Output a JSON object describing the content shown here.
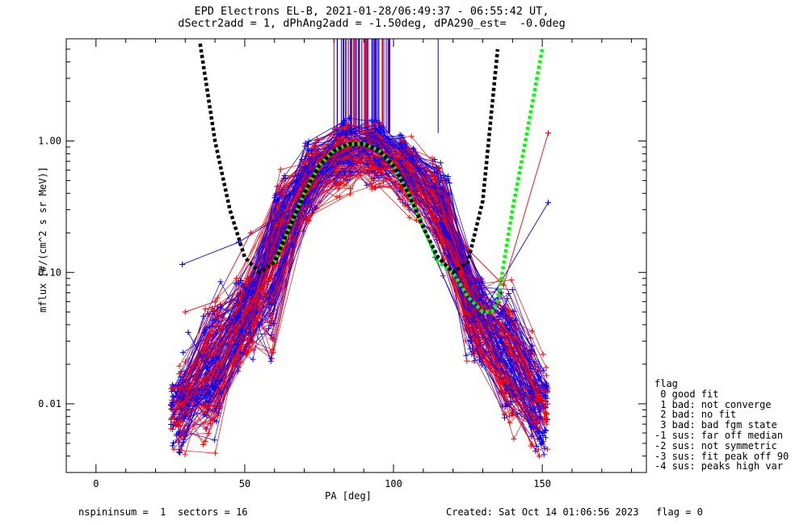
{
  "title": {
    "line1": "EPD Electrons EL-B, 2021-01-28/06:49:37 - 06:55:42 UT,",
    "line2": "dSectr2add = 1, dPhAng2add = -1.50deg, dPA290_est=  -0.0deg"
  },
  "footer": {
    "left": "nspininsum =  1  sectors = 16",
    "right": "Created: Sat Oct 14 01:06:56 2023   flag = 0"
  },
  "legend": {
    "title": "flag",
    "items": [
      " 0 good fit",
      " 1 bad: not converge",
      " 2 bad: no fit",
      " 3 bad: bad fgm state",
      "-1 sus: far off median",
      "-2 sus: not symmetric",
      "-3 sus: fit peak off 90",
      "-4 sus: peaks high var"
    ]
  },
  "colors": {
    "series_red": "#ff0000",
    "series_blue": "#0000ff",
    "fit_green": "#00ff00",
    "fit_black": "#000000"
  },
  "chart_data": {
    "type": "line",
    "xlabel": "PA [deg]",
    "ylabel": "mflux [#/(cm^2 s sr MeV)]",
    "xlim": [
      -10,
      185
    ],
    "ylim": [
      0.003,
      6.0
    ],
    "yscale": "log",
    "xticks": [
      0,
      50,
      100,
      150
    ],
    "xtick_labels": [
      "0",
      "50",
      "100",
      "150"
    ],
    "yticks": [
      0.01,
      0.1,
      1.0
    ],
    "ytick_labels": [
      "0.01",
      "0.10",
      "1.00"
    ],
    "grid": false,
    "legend_placement": "outside-right",
    "fit_curves": [
      {
        "color": "green",
        "style": "dotted",
        "x": [
          60,
          65,
          70,
          75,
          80,
          85,
          90,
          95,
          100,
          105,
          110,
          115,
          120,
          125,
          130,
          133,
          135,
          140,
          145,
          150
        ],
        "y": [
          0.12,
          0.22,
          0.4,
          0.65,
          0.85,
          0.95,
          0.95,
          0.85,
          0.65,
          0.4,
          0.22,
          0.12,
          0.1,
          0.065,
          0.05,
          0.05,
          0.06,
          0.3,
          1.2,
          5.0
        ]
      },
      {
        "color": "black",
        "style": "dotted",
        "x": [
          35,
          40,
          45,
          50,
          55,
          60,
          65,
          70,
          75,
          80,
          85,
          90,
          95,
          100,
          105,
          110,
          115,
          120,
          125,
          130,
          135
        ],
        "y": [
          5.5,
          1.0,
          0.3,
          0.13,
          0.1,
          0.12,
          0.22,
          0.4,
          0.65,
          0.85,
          0.95,
          0.95,
          0.85,
          0.65,
          0.4,
          0.22,
          0.13,
          0.1,
          0.12,
          0.35,
          5.0
        ]
      }
    ],
    "sample_series": [
      {
        "color": "blue",
        "x": [
          29,
          48,
          70,
          82,
          90,
          98,
          108,
          118,
          130,
          152
        ],
        "y": [
          0.115,
          0.17,
          0.35,
          0.8,
          0.9,
          1.05,
          0.62,
          0.2,
          0.05,
          0.34
        ]
      },
      {
        "color": "red",
        "x": [
          30,
          40,
          52,
          64,
          77,
          89,
          101,
          113,
          125,
          137,
          152
        ],
        "y": [
          0.05,
          0.06,
          0.2,
          0.3,
          0.8,
          0.95,
          0.75,
          0.4,
          0.15,
          0.08,
          1.15
        ]
      },
      {
        "color": "blue",
        "x": [
          31,
          42,
          55,
          67,
          79,
          90,
          102,
          114,
          126,
          138,
          150
        ],
        "y": [
          0.035,
          0.012,
          0.04,
          0.2,
          0.75,
          0.9,
          0.7,
          0.2,
          0.06,
          0.02,
          0.005
        ]
      },
      {
        "color": "red",
        "x": [
          28,
          40,
          52,
          64,
          76,
          88,
          100,
          112,
          124,
          136,
          148
        ],
        "y": [
          0.017,
          0.025,
          0.055,
          0.2,
          0.7,
          0.95,
          0.7,
          0.3,
          0.05,
          0.02,
          0.007
        ]
      },
      {
        "color": "blue",
        "x": [
          30,
          42,
          54,
          66,
          78,
          90,
          102,
          114,
          126,
          138,
          150
        ],
        "y": [
          0.008,
          0.015,
          0.05,
          0.16,
          0.6,
          0.85,
          0.6,
          0.13,
          0.03,
          0.01,
          0.006
        ]
      },
      {
        "color": "red",
        "x": [
          29,
          41,
          53,
          65,
          77,
          89,
          101,
          113,
          125,
          137,
          149
        ],
        "y": [
          0.01,
          0.02,
          0.06,
          0.23,
          0.72,
          0.92,
          0.68,
          0.22,
          0.04,
          0.012,
          0.004
        ]
      }
    ]
  }
}
